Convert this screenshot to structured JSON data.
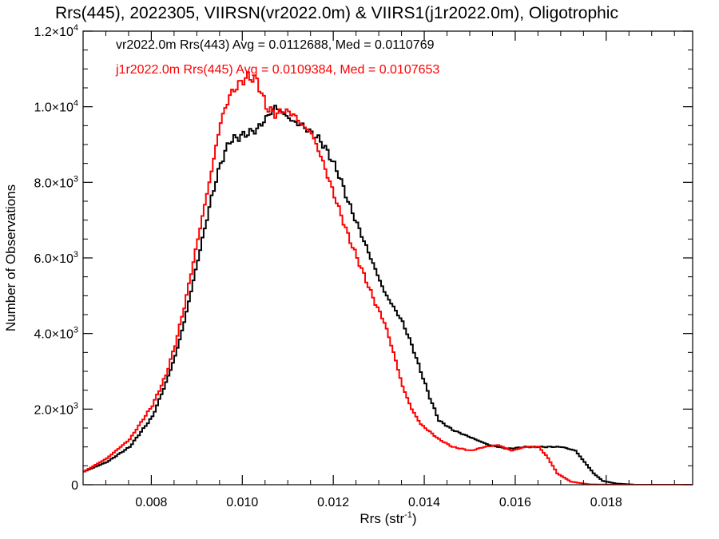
{
  "chart_data": {
    "type": "line",
    "title": "Rrs(445), 2022305, VIIRSN(vr2022.0m) & VIIRS1(j1r2022.0m), Oligotrophic",
    "xlabel_main": "Rrs (str",
    "xlabel_sup": "-1",
    "xlabel_end": ")",
    "ylabel": "Number of Observations",
    "xlim": [
      0.0065,
      0.0199
    ],
    "ylim": [
      0,
      12000
    ],
    "xticks": [
      {
        "value": 0.008,
        "label": "0.008"
      },
      {
        "value": 0.01,
        "label": "0.010"
      },
      {
        "value": 0.012,
        "label": "0.012"
      },
      {
        "value": 0.014,
        "label": "0.014"
      },
      {
        "value": 0.016,
        "label": "0.016"
      },
      {
        "value": 0.018,
        "label": "0.018"
      }
    ],
    "yticks": [
      {
        "value": 0,
        "mant": "0",
        "exp": ""
      },
      {
        "value": 2000,
        "mant": "2.0×10",
        "exp": "3"
      },
      {
        "value": 4000,
        "mant": "4.0×10",
        "exp": "3"
      },
      {
        "value": 6000,
        "mant": "6.0×10",
        "exp": "3"
      },
      {
        "value": 8000,
        "mant": "8.0×10",
        "exp": "3"
      },
      {
        "value": 10000,
        "mant": "1.0×10",
        "exp": "4"
      },
      {
        "value": 12000,
        "mant": "1.2×10",
        "exp": "4"
      }
    ],
    "grid": false,
    "legend_position": "top-left",
    "series": [
      {
        "legend": "vr2022.0m Rrs(443) Avg = 0.0112688, Med = 0.0110769",
        "color": "#000000",
        "x": [
          0.0065,
          0.007,
          0.0075,
          0.008,
          0.0083,
          0.0085,
          0.0087,
          0.0089,
          0.0091,
          0.0093,
          0.0095,
          0.0097,
          0.0099,
          0.0101,
          0.0103,
          0.0105,
          0.0107,
          0.0109,
          0.0111,
          0.0113,
          0.0115,
          0.0117,
          0.0119,
          0.0121,
          0.0123,
          0.0125,
          0.0127,
          0.0129,
          0.0131,
          0.0133,
          0.0135,
          0.0137,
          0.0139,
          0.0141,
          0.0143,
          0.0146,
          0.015,
          0.0154,
          0.0158,
          0.0162,
          0.0166,
          0.017,
          0.0173,
          0.0175,
          0.0177,
          0.0179,
          0.0182,
          0.0186,
          0.0199
        ],
        "y": [
          350,
          600,
          1000,
          1800,
          2700,
          3400,
          4300,
          5400,
          6500,
          7600,
          8500,
          9100,
          9200,
          9300,
          9400,
          9700,
          10000,
          9800,
          9600,
          9500,
          9300,
          9100,
          8700,
          8200,
          7500,
          6900,
          6300,
          5700,
          5100,
          4700,
          4300,
          3700,
          3000,
          2300,
          1700,
          1450,
          1250,
          1050,
          950,
          1000,
          1000,
          1000,
          900,
          600,
          300,
          100,
          30,
          0,
          0
        ]
      },
      {
        "legend": "j1r2022.0m Rrs(445) Avg = 0.0109384, Med = 0.0107653",
        "color": "#ff0000",
        "x": [
          0.0065,
          0.007,
          0.0075,
          0.008,
          0.0083,
          0.0085,
          0.0087,
          0.0089,
          0.0091,
          0.0093,
          0.0095,
          0.0097,
          0.0099,
          0.0101,
          0.0103,
          0.0105,
          0.0107,
          0.0109,
          0.0111,
          0.0113,
          0.0115,
          0.0117,
          0.0119,
          0.0121,
          0.0123,
          0.0125,
          0.0127,
          0.0129,
          0.0131,
          0.0133,
          0.0135,
          0.0137,
          0.0139,
          0.0141,
          0.0143,
          0.0146,
          0.015,
          0.0153,
          0.0156,
          0.0159,
          0.0162,
          0.0165,
          0.0167,
          0.0169,
          0.0172,
          0.0176,
          0.0182,
          0.0199
        ],
        "y": [
          350,
          700,
          1200,
          2100,
          2900,
          3700,
          4700,
          5900,
          7100,
          8300,
          9600,
          10300,
          10600,
          10800,
          10700,
          10000,
          9800,
          9900,
          9800,
          9500,
          9300,
          8700,
          8000,
          7300,
          6600,
          6000,
          5400,
          4800,
          4300,
          3500,
          2600,
          2000,
          1600,
          1400,
          1200,
          1000,
          900,
          1000,
          1050,
          900,
          1000,
          1000,
          700,
          300,
          80,
          10,
          0,
          0
        ]
      }
    ]
  }
}
